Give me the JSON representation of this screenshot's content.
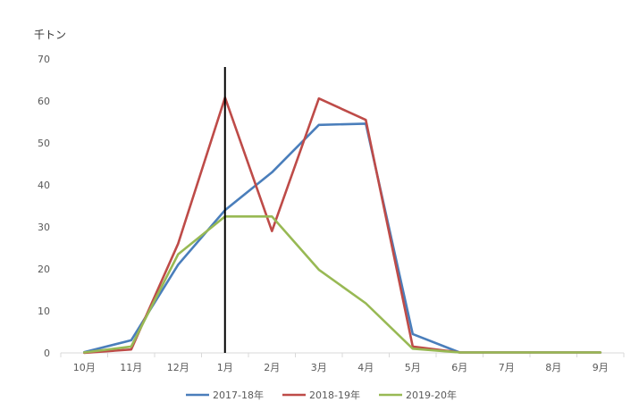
{
  "chart_data": {
    "type": "line",
    "title": "",
    "ylabel": "千トン",
    "xlabel": "",
    "ylim": [
      0,
      70
    ],
    "yticks": [
      0,
      10,
      20,
      30,
      40,
      50,
      60,
      70
    ],
    "categories": [
      "10月",
      "11月",
      "12月",
      "1月",
      "2月",
      "3月",
      "4月",
      "5月",
      "6月",
      "7月",
      "8月",
      "9月"
    ],
    "grid": false,
    "legend_position": "bottom",
    "marker_line_at_category": "1月",
    "series": [
      {
        "name": "2017-18年",
        "color": "#4a7ebb",
        "values": [
          0.2,
          3.0,
          21.0,
          34.0,
          43.0,
          54.3,
          54.6,
          4.5,
          0.1,
          0.1,
          0.1,
          0.1
        ]
      },
      {
        "name": "2018-19年",
        "color": "#be4b48",
        "values": [
          0.0,
          0.8,
          26.0,
          60.8,
          29.0,
          60.6,
          55.5,
          1.5,
          0.1,
          0.1,
          0.1,
          0.1
        ]
      },
      {
        "name": "2019-20年",
        "color": "#98b954",
        "values": [
          0.1,
          1.5,
          23.5,
          32.5,
          32.5,
          19.8,
          11.8,
          1.0,
          0.1,
          0.1,
          0.1,
          0.1
        ]
      }
    ]
  }
}
